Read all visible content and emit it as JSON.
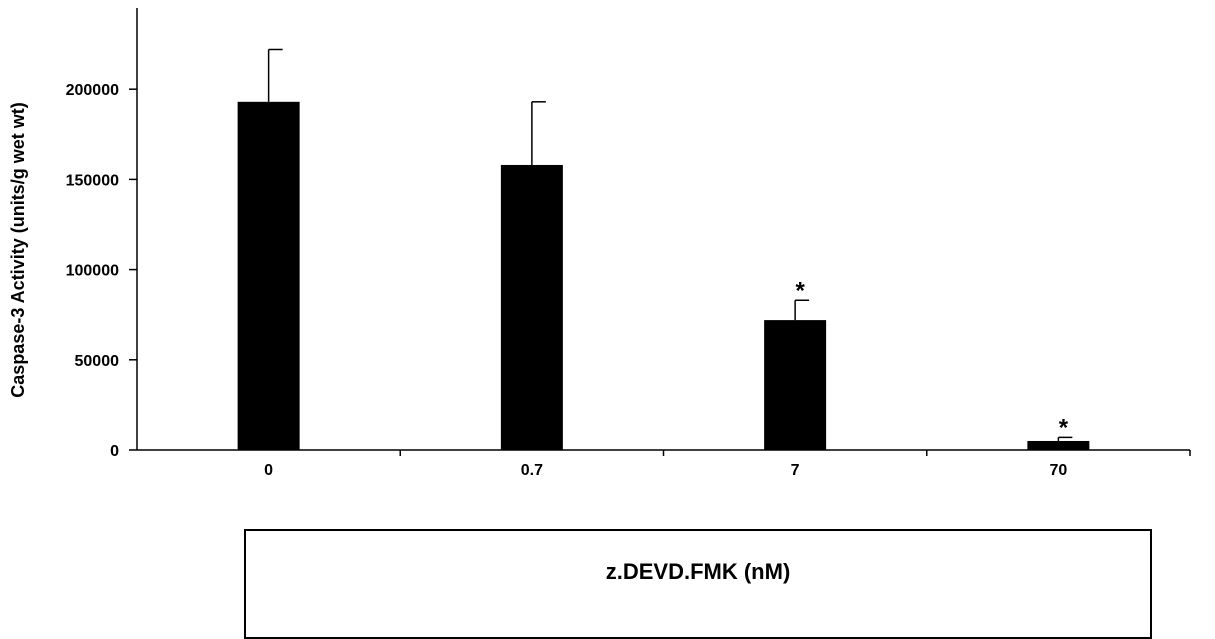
{
  "chart_data": {
    "type": "bar",
    "title": "",
    "xlabel": "z.DEVD.FMK (nM)",
    "ylabel": "Caspase-3 Activity (units/g wet wt)",
    "categories": [
      "0",
      "0.7",
      "7",
      "70"
    ],
    "series": [
      {
        "values": [
          193000,
          158000,
          72000,
          5000
        ],
        "errors": [
          29000,
          35000,
          11000,
          2000
        ],
        "color": "#000000"
      }
    ],
    "significance": [
      "",
      "",
      "*",
      "*"
    ],
    "y_ticks": [
      0,
      50000,
      100000,
      150000,
      200000
    ],
    "y_tick_labels": [
      "0",
      "50000",
      "100000",
      "150000",
      "200000"
    ],
    "ylim": [
      0,
      245000
    ],
    "grid": false,
    "legend": "none"
  }
}
